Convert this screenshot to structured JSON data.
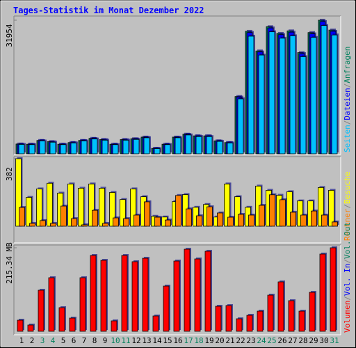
{
  "chart_data": {
    "type": "bar",
    "title": "Tages-Statistik im Monat Dezember 2022",
    "categories": [
      "1",
      "2",
      "3",
      "4",
      "5",
      "6",
      "7",
      "8",
      "9",
      "10",
      "11",
      "12",
      "13",
      "14",
      "15",
      "16",
      "17",
      "18",
      "19",
      "20",
      "21",
      "22",
      "23",
      "24",
      "25",
      "26",
      "27",
      "28",
      "29",
      "30",
      "31"
    ],
    "category_colors": [
      "#000000",
      "#000000",
      "#00805c",
      "#00805c",
      "#000000",
      "#000000",
      "#000000",
      "#000000",
      "#000000",
      "#00805c",
      "#00805c",
      "#000000",
      "#000000",
      "#000000",
      "#000000",
      "#000000",
      "#00805c",
      "#00805c",
      "#000000",
      "#000000",
      "#000000",
      "#000000",
      "#000000",
      "#00805c",
      "#00805c",
      "#000000",
      "#000000",
      "#000000",
      "#000000",
      "#000000",
      "#00805c"
    ],
    "legend_separator": "/",
    "panels": [
      {
        "ylim": [
          0,
          31954
        ],
        "yticks": [
          31954
        ],
        "legend_reverse": true,
        "series": [
          {
            "name": "Anfragen",
            "color": "#00805c",
            "values": [
              2350,
              2300,
              3200,
              2900,
              2300,
              2700,
              3200,
              3700,
              3400,
              2300,
              3400,
              3600,
              4000,
              1300,
              2300,
              4000,
              4700,
              4300,
              4300,
              3100,
              2700,
              13700,
              29300,
              24600,
              30400,
              28800,
              29400,
              24200,
              29000,
              31954,
              29600
            ]
          },
          {
            "name": "Dateien",
            "color": "#0000ff",
            "values": [
              2330,
              2280,
              3170,
              2870,
              2280,
              2670,
              3170,
              3660,
              3370,
              2280,
              3370,
              3560,
              3960,
              1290,
              2280,
              3960,
              4650,
              4260,
              4260,
              3070,
              2670,
              13560,
              29000,
              24350,
              30100,
              28500,
              29100,
              23960,
              28700,
              31630,
              29300
            ]
          },
          {
            "name": "Seiten",
            "color": "#00c0ff",
            "values": [
              2250,
              2200,
              3070,
              2780,
              2200,
              2590,
              3070,
              3550,
              3260,
              2200,
              3260,
              3450,
              3840,
              1250,
              2200,
              3840,
              4510,
              4130,
              4130,
              2980,
              2590,
              13150,
              28130,
              23620,
              29180,
              27650,
              28220,
              23230,
              27840,
              30680,
              28420
            ]
          }
        ]
      },
      {
        "ylim": [
          0,
          382
        ],
        "yticks": [
          382
        ],
        "legend_reverse": true,
        "series": [
          {
            "name": "Besuche",
            "color": "#ffff00",
            "values": [
              382,
              163,
              211,
              243,
              187,
              239,
              215,
              239,
              215,
              191,
              151,
              211,
              167,
              56,
              52,
              139,
              179,
              107,
              123,
              52,
              239,
              167,
              107,
              227,
              203,
              175,
              195,
              143,
              143,
              219,
              203
            ]
          },
          {
            "name": "Rechner",
            "color": "#ff8000",
            "values": [
              106,
              16,
              32,
              16,
              114,
              43,
              8,
              90,
              16,
              47,
              43,
              63,
              138,
              51,
              35,
              174,
              98,
              59,
              110,
              75,
              51,
              67,
              63,
              118,
              178,
              150,
              79,
              63,
              86,
              63,
              24
            ]
          }
        ]
      },
      {
        "ylim": [
          0,
          215.34
        ],
        "yticks": [
          {
            "value": 215.34,
            "label": "215.34 MB"
          }
        ],
        "legend_reverse": false,
        "series": [
          {
            "name": "Volumen",
            "color": "#ff0000",
            "values": [
              28.7,
              16.2,
              105.9,
              138.2,
              61.0,
              34.1,
              138.2,
              195.6,
              183.0,
              26.9,
              195.6,
              179.5,
              188.4,
              39.5,
              116.6,
              181.2,
              211.7,
              186.6,
              206.4,
              64.6,
              66.4,
              32.3,
              41.3,
              52.0,
              93.3,
              127.4,
              79.0,
              52.0,
              100.5,
              199.2,
              215.34
            ]
          }
        ],
        "legend_extra": [
          {
            "name": "Vol. In",
            "color": "#0000ff"
          },
          {
            "name": "Vol. Out",
            "color": "#00805c"
          }
        ]
      }
    ]
  }
}
